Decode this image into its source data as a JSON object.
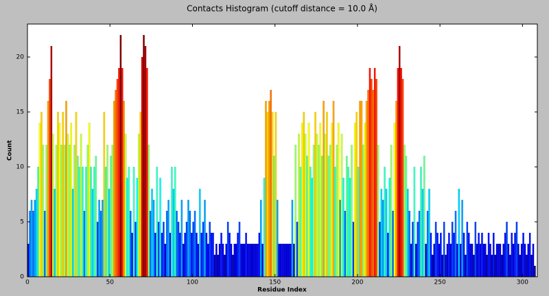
{
  "chart_data": {
    "type": "histogram",
    "title": "Contacts Histogram (cutoff distance = 10.0 Å)",
    "xlabel": "Residue Index",
    "ylabel": "Count",
    "colormap": "jet",
    "bins": [
      0,
      1,
      2,
      3,
      4,
      5,
      6,
      7,
      8,
      9,
      10,
      11,
      12,
      13,
      14,
      15,
      16,
      17,
      18,
      19,
      20,
      21,
      22,
      23,
      24,
      25,
      26,
      27,
      28,
      29,
      30,
      31,
      32,
      33,
      34,
      35,
      36,
      37,
      38,
      39,
      40,
      41,
      42,
      43,
      44,
      45,
      46,
      47,
      48,
      49,
      50,
      51,
      52,
      53,
      54,
      55,
      56,
      57,
      58,
      59,
      60,
      61,
      62,
      63,
      64,
      65,
      66,
      67,
      68,
      69,
      70,
      71,
      72,
      73,
      74,
      75,
      76,
      77,
      78,
      79,
      80,
      81,
      82,
      83,
      84,
      85,
      86,
      87,
      88,
      89,
      90,
      91,
      92,
      93,
      94,
      95,
      96,
      97,
      98,
      99,
      100,
      101,
      102,
      103,
      104,
      105,
      106,
      107,
      108,
      109,
      110,
      111,
      112,
      113,
      114,
      115,
      116,
      117,
      118,
      119,
      120,
      121,
      122,
      123,
      124,
      125,
      126,
      127,
      128,
      129,
      130,
      131,
      132,
      133,
      134,
      135,
      136,
      137,
      138,
      139,
      140,
      141,
      142,
      143,
      144,
      145,
      146,
      147,
      148,
      149,
      150,
      151,
      152,
      153,
      154,
      155,
      156,
      157,
      158,
      159,
      160,
      161,
      162,
      163,
      164,
      165,
      166,
      167,
      168,
      169,
      170,
      171,
      172,
      173,
      174,
      175,
      176,
      177,
      178,
      179,
      180,
      181,
      182,
      183,
      184,
      185,
      186,
      187,
      188,
      189,
      190,
      191,
      192,
      193,
      194,
      195,
      196,
      197,
      198,
      199,
      200,
      201,
      202,
      203,
      204,
      205,
      206,
      207,
      208,
      209,
      210,
      211,
      212,
      213,
      214,
      215,
      216,
      217,
      218,
      219,
      220,
      221,
      222,
      223,
      224,
      225,
      226,
      227,
      228,
      229,
      230,
      231,
      232,
      233,
      234,
      235,
      236,
      237,
      238,
      239,
      240,
      241,
      242,
      243,
      244,
      245,
      246,
      247,
      248,
      249,
      250,
      251,
      252,
      253,
      254,
      255,
      256,
      257,
      258,
      259,
      260,
      261,
      262,
      263,
      264,
      265,
      266,
      267,
      268,
      269,
      270,
      271,
      272,
      273,
      274,
      275,
      276,
      277,
      278,
      279,
      280,
      281,
      282,
      283,
      284,
      285,
      286,
      287,
      288,
      289,
      290,
      291,
      292,
      293,
      294,
      295,
      296,
      297,
      298,
      299,
      300,
      301,
      302,
      303,
      304,
      305,
      306,
      307,
      308
    ],
    "values": [
      3,
      6,
      7,
      6,
      7,
      8,
      10,
      14,
      15,
      12,
      6,
      12,
      16,
      18,
      21,
      13,
      8,
      12,
      15,
      14,
      12,
      15,
      12,
      16,
      13,
      12,
      14,
      8,
      12,
      15,
      11,
      10,
      13,
      10,
      6,
      10,
      12,
      14,
      10,
      8,
      10,
      11,
      5,
      7,
      6,
      7,
      15,
      10,
      12,
      8,
      11,
      12,
      16,
      17,
      18,
      19,
      22,
      19,
      16,
      13,
      9,
      10,
      6,
      4,
      10,
      5,
      9,
      13,
      15,
      20,
      22,
      21,
      19,
      12,
      6,
      8,
      7,
      4,
      10,
      5,
      9,
      4,
      5,
      3,
      6,
      7,
      4,
      10,
      8,
      10,
      6,
      5,
      4,
      7,
      3,
      4,
      5,
      7,
      6,
      4,
      5,
      6,
      4,
      3,
      8,
      4,
      5,
      7,
      4,
      3,
      5,
      4,
      4,
      2,
      3,
      2,
      3,
      4,
      3,
      2,
      3,
      5,
      4,
      3,
      2,
      3,
      3,
      4,
      5,
      3,
      3,
      3,
      4,
      3,
      3,
      3,
      3,
      3,
      3,
      3,
      4,
      7,
      3,
      9,
      16,
      15,
      16,
      17,
      15,
      11,
      15,
      7,
      3,
      3,
      3,
      3,
      3,
      3,
      3,
      3,
      7,
      3,
      12,
      5,
      13,
      10,
      14,
      15,
      13,
      11,
      14,
      10,
      9,
      12,
      15,
      13,
      12,
      14,
      11,
      16,
      13,
      15,
      11,
      12,
      14,
      16,
      10,
      12,
      14,
      7,
      13,
      9,
      6,
      11,
      10,
      9,
      12,
      5,
      14,
      15,
      10,
      16,
      16,
      12,
      14,
      16,
      17,
      19,
      18,
      17,
      19,
      18,
      12,
      5,
      8,
      7,
      10,
      8,
      4,
      9,
      12,
      6,
      14,
      16,
      19,
      21,
      19,
      18,
      12,
      11,
      8,
      6,
      3,
      5,
      10,
      3,
      5,
      6,
      10,
      8,
      11,
      3,
      6,
      8,
      4,
      2,
      3,
      5,
      4,
      3,
      4,
      2,
      5,
      2,
      3,
      4,
      3,
      5,
      4,
      6,
      3,
      8,
      3,
      7,
      4,
      2,
      5,
      4,
      3,
      3,
      2,
      5,
      3,
      4,
      3,
      4,
      3,
      3,
      2,
      4,
      3,
      2,
      4,
      2,
      3,
      3,
      3,
      2,
      3,
      4,
      5,
      3,
      2,
      4,
      3,
      4,
      5,
      3,
      2,
      3,
      4,
      3,
      2,
      3,
      4,
      2,
      3,
      1
    ],
    "xlim": [
      0,
      309
    ],
    "ylim": [
      0,
      23
    ],
    "xticks": [
      0,
      50,
      100,
      150,
      200,
      250,
      300
    ],
    "yticks": [
      0,
      5,
      10,
      15,
      20
    ]
  }
}
